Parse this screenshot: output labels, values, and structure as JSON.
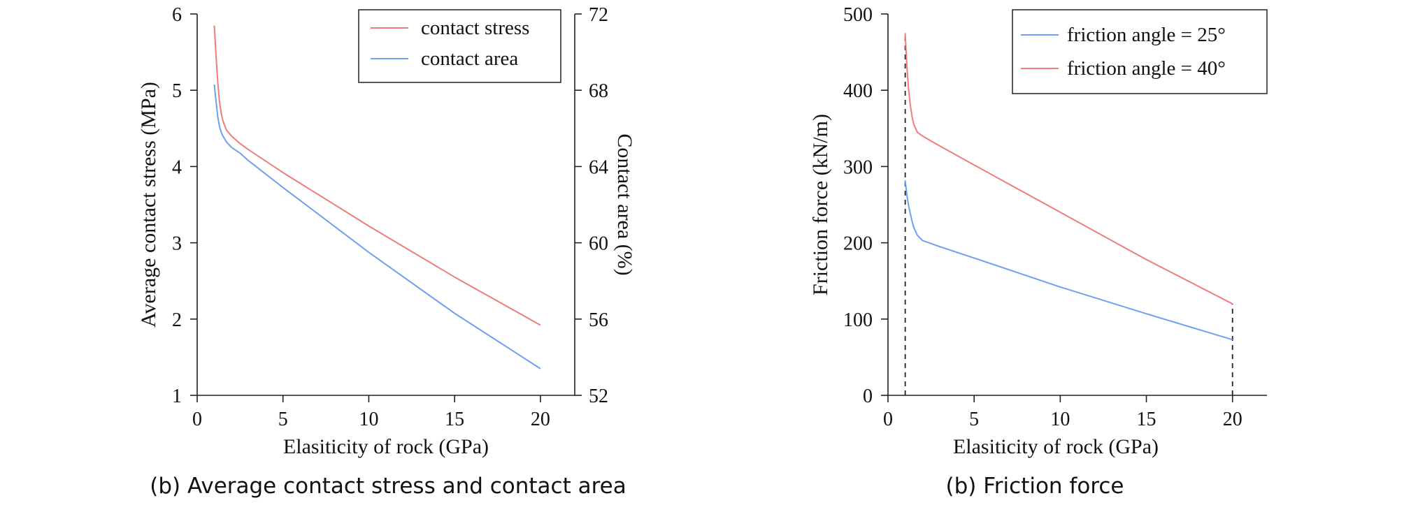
{
  "chart_data": [
    {
      "type": "line",
      "caption": "(b) Average contact stress and contact area",
      "xlabel": "Elasiticity of rock (GPa)",
      "ylabel": "Average contact stress (MPa)",
      "y2label": "Contact area (%)",
      "xlim": [
        0,
        22
      ],
      "ylim": [
        1,
        6
      ],
      "y2lim": [
        52,
        72
      ],
      "xticks": [
        0,
        5,
        10,
        15,
        20
      ],
      "yticks": [
        1,
        2,
        3,
        4,
        5,
        6
      ],
      "y2ticks": [
        52,
        56,
        60,
        64,
        68,
        72
      ],
      "grid": false,
      "legend_position": "top-right",
      "series": [
        {
          "name": "contact stress",
          "axis": "left",
          "color": "#f07c7c",
          "x": [
            1.0,
            1.1,
            1.2,
            1.3,
            1.4,
            1.5,
            1.7,
            2.0,
            2.5,
            3,
            5,
            10,
            15,
            20
          ],
          "y": [
            5.85,
            5.45,
            5.1,
            4.85,
            4.7,
            4.6,
            4.48,
            4.4,
            4.3,
            4.22,
            3.92,
            3.22,
            2.55,
            1.92
          ]
        },
        {
          "name": "contact area",
          "axis": "right",
          "color": "#6f9ff0",
          "x": [
            1.0,
            1.1,
            1.2,
            1.3,
            1.4,
            1.5,
            1.7,
            2.0,
            2.5,
            3,
            5,
            10,
            15,
            20
          ],
          "y": [
            68.3,
            67.4,
            66.6,
            66.1,
            65.8,
            65.6,
            65.3,
            65.0,
            64.7,
            64.3,
            62.9,
            59.5,
            56.3,
            53.4
          ]
        }
      ]
    },
    {
      "type": "line",
      "caption": "(b) Friction force",
      "xlabel": "Elasiticity of rock (GPa)",
      "ylabel": "Friction force (kN/m)",
      "xlim": [
        0,
        22
      ],
      "ylim": [
        0,
        500
      ],
      "xticks": [
        0,
        5,
        10,
        15,
        20
      ],
      "yticks": [
        0,
        100,
        200,
        300,
        400,
        500
      ],
      "grid": false,
      "legend_position": "top-right",
      "reference_lines_x": [
        1,
        20
      ],
      "series": [
        {
          "name": "friction angle = 25°",
          "color": "#6f9ff0",
          "x": [
            1.0,
            1.1,
            1.2,
            1.3,
            1.4,
            1.5,
            1.7,
            2.0,
            3,
            5,
            10,
            15,
            20
          ],
          "y": [
            282,
            262,
            248,
            238,
            228,
            220,
            210,
            203,
            195,
            180,
            142,
            107,
            73
          ]
        },
        {
          "name": "friction angle = 40°",
          "color": "#f07c7c",
          "x": [
            1.0,
            1.1,
            1.2,
            1.3,
            1.4,
            1.5,
            1.7,
            2.0,
            3,
            5,
            10,
            15,
            20
          ],
          "y": [
            475,
            430,
            400,
            380,
            365,
            355,
            345,
            340,
            327,
            302,
            240,
            178,
            120
          ]
        }
      ]
    }
  ]
}
